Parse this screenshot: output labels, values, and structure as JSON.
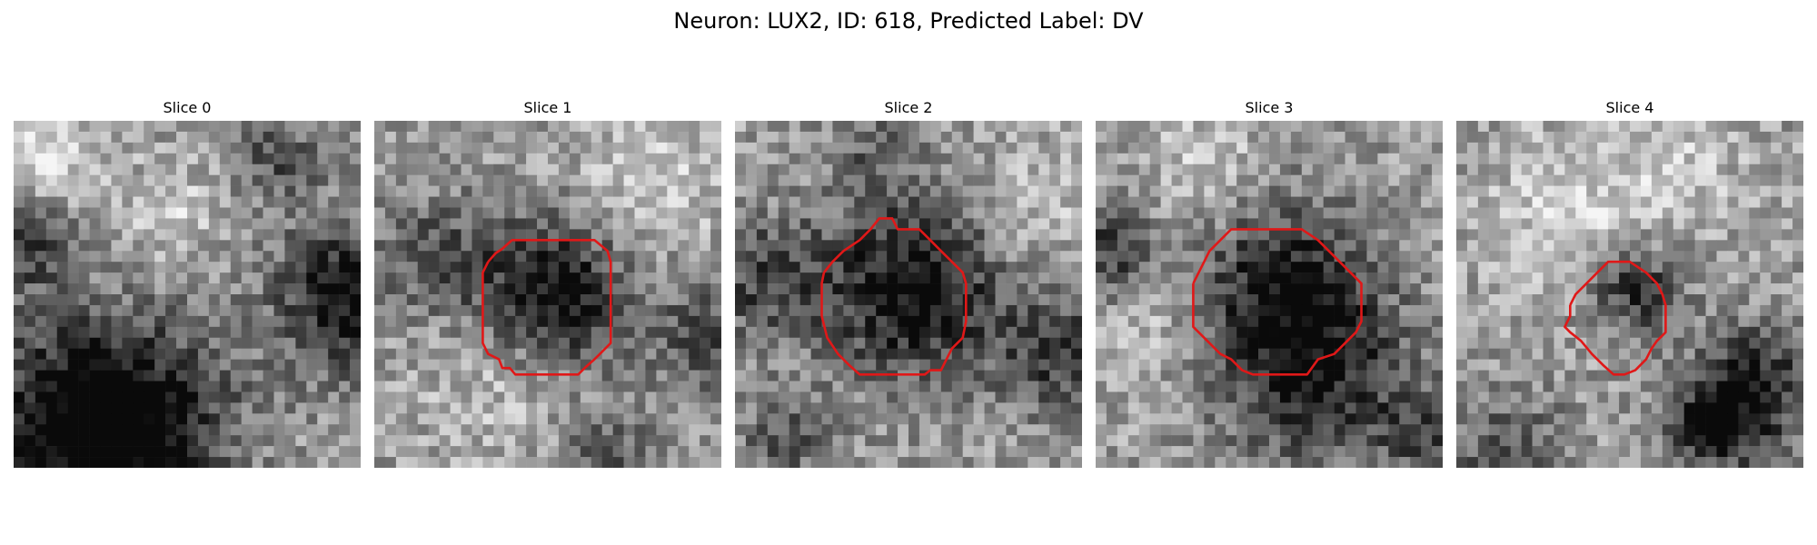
{
  "figure": {
    "title": "Neuron: LUX2, ID: 618, Predicted Label: DV",
    "contour_color": "#e01818"
  },
  "slices": [
    {
      "title": "Slice 0",
      "seed": 11,
      "blobs": [],
      "contour": null
    },
    {
      "title": "Slice 1",
      "seed": 27,
      "blobs": [],
      "contour": null
    },
    {
      "title": "Slice 2",
      "seed": 43,
      "blobs": [],
      "contour": null
    },
    {
      "title": "Slice 3",
      "seed": 59,
      "blobs": [],
      "contour": null
    },
    {
      "title": "Slice 4",
      "seed": 75,
      "blobs": [],
      "contour": null
    }
  ]
}
